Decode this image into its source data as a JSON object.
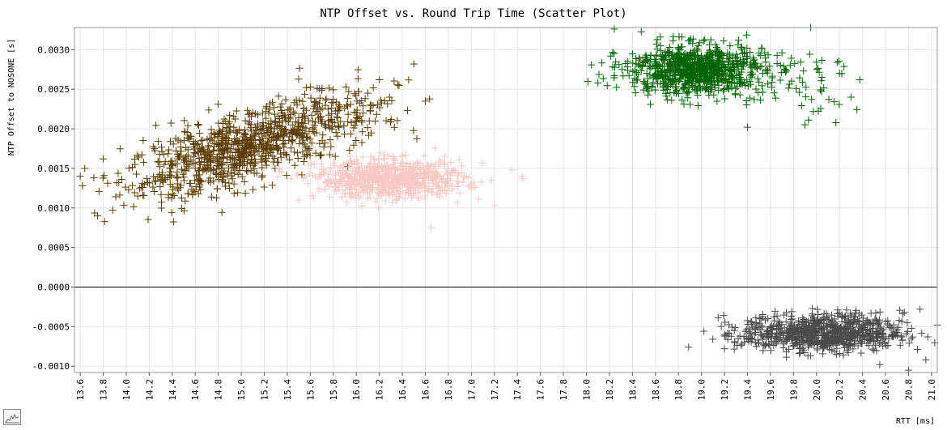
{
  "chart_data": {
    "type": "scatter",
    "title": "NTP Offset vs. Round Trip Time (Scatter Plot)",
    "xlabel": "RTT [ms]",
    "ylabel": "NTP Offset to NOSONE [s]",
    "xlim": [
      13.55,
      21.05
    ],
    "ylim": [
      -0.00108,
      0.00328
    ],
    "grid": true,
    "legend": "none",
    "marker": "plus",
    "x_ticks": [
      "13.6",
      "13.8",
      "14.0",
      "14.2",
      "14.4",
      "14.6",
      "14.8",
      "15.0",
      "15.2",
      "15.4",
      "15.6",
      "15.8",
      "16.0",
      "16.2",
      "16.4",
      "16.6",
      "16.8",
      "17.0",
      "17.2",
      "17.4",
      "17.6",
      "17.8",
      "18.0",
      "18.2",
      "18.4",
      "18.6",
      "18.8",
      "19.0",
      "19.2",
      "19.4",
      "19.6",
      "19.8",
      "20.0",
      "20.2",
      "20.4",
      "20.6",
      "20.8",
      "21.0"
    ],
    "y_ticks": [
      "0.0030",
      "0.0025",
      "0.0020",
      "0.0015",
      "0.0010",
      "0.0005",
      "0.0000",
      "-0.0005",
      "-0.0010"
    ],
    "series": [
      {
        "color": "#5c3d00",
        "clusters": [
          {
            "cx": 15.0,
            "cy": 0.00175,
            "sx": 0.5,
            "sy": 0.00022,
            "slope": 0.00045,
            "n": 900
          },
          {
            "cx": 15.9,
            "cy": 0.0022,
            "sx": 0.35,
            "sy": 0.0002,
            "slope": 0.0,
            "n": 80
          }
        ],
        "points": [
          [
            13.6,
            0.0014
          ],
          [
            13.62,
            0.00128
          ],
          [
            16.5,
            0.00282
          ],
          [
            16.6,
            0.00235
          ],
          [
            16.1,
            0.00245
          ],
          [
            14.1,
            0.00115
          ],
          [
            16.2,
            0.00262
          ],
          [
            13.8,
            0.00162
          ]
        ]
      },
      {
        "color": "#f7c8c4",
        "clusters": [
          {
            "cx": 16.3,
            "cy": 0.00136,
            "sx": 0.32,
            "sy": 0.00012,
            "slope": 0.0,
            "n": 750
          }
        ],
        "points": [
          [
            17.35,
            0.00148
          ],
          [
            17.2,
            0.00103
          ],
          [
            16.65,
            0.00075
          ],
          [
            15.5,
            0.0011
          ],
          [
            15.7,
            0.00142
          ]
        ]
      },
      {
        "color": "#006400",
        "clusters": [
          {
            "cx": 18.95,
            "cy": 0.00275,
            "sx": 0.3,
            "sy": 0.00016,
            "slope": 0.0,
            "n": 850
          },
          {
            "cx": 19.9,
            "cy": 0.0025,
            "sx": 0.25,
            "sy": 0.0002,
            "slope": 0.0,
            "n": 45
          }
        ],
        "points": [
          [
            18.1,
            0.00258
          ],
          [
            19.4,
            0.00202
          ],
          [
            20.2,
            0.0027
          ],
          [
            19.9,
            0.00205
          ],
          [
            19.7,
            0.00296
          ],
          [
            19.95,
            0.00328
          ],
          [
            20.3,
            0.0024
          ]
        ]
      },
      {
        "color": "#4a4a4a",
        "clusters": [
          {
            "cx": 20.05,
            "cy": -0.00058,
            "sx": 0.35,
            "sy": 0.00012,
            "slope": 0.0,
            "n": 800
          }
        ],
        "points": [
          [
            19.2,
            -0.00078
          ],
          [
            19.2,
            -0.00062
          ],
          [
            21.05,
            -0.00048
          ],
          [
            20.8,
            -0.00105
          ],
          [
            20.55,
            -0.00098
          ],
          [
            20.95,
            -0.00092
          ],
          [
            20.9,
            -0.00028
          ]
        ]
      }
    ]
  }
}
